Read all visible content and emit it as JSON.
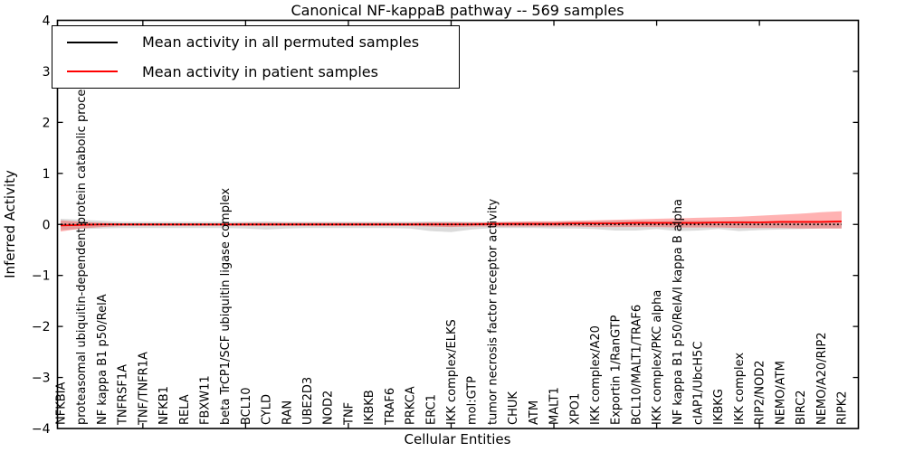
{
  "figure": {
    "title": "Canonical NF-kappaB pathway -- 569 samples",
    "xlabel": "Cellular Entities",
    "ylabel": "Inferred Activity",
    "background_color": "#ffffff",
    "axis_color": "#000000"
  },
  "legend": {
    "position": "upper left",
    "items": [
      {
        "label": "Mean activity in all permuted samples",
        "color": "#000000",
        "style": "solid"
      },
      {
        "label": "Mean activity in patient samples",
        "color": "#ff0000",
        "style": "solid"
      }
    ]
  },
  "chart_data": {
    "type": "line",
    "title": "Canonical NF-kappaB pathway -- 569 samples",
    "xlabel": "Cellular Entities",
    "ylabel": "Inferred Activity",
    "ylim": [
      -4,
      4
    ],
    "yticks": [
      4,
      3,
      2,
      1,
      0,
      -1,
      -2,
      -3,
      -4
    ],
    "xtick_interval": 5,
    "grid": false,
    "legend_position": "upper left",
    "categories": [
      "NFKBIA",
      "proteasomal ubiquitin-dependent protein catabolic process",
      "NF kappa B1 p50/RelA",
      "TNFRSF1A",
      "TNF/TNFR1A",
      "NFKB1",
      "RELA",
      "FBXW11",
      "beta TrCP1/SCF ubiquitin ligase complex",
      "BCL10",
      "CYLD",
      "RAN",
      "UBE2D3",
      "NOD2",
      "TNF",
      "IKBKB",
      "TRAF6",
      "PRKCA",
      "ERC1",
      "IKK complex/ELKS",
      "mol:GTP",
      "tumor necrosis factor receptor activity",
      "CHUK",
      "ATM",
      "MALT1",
      "XPO1",
      "IKK complex/A20",
      "Exportin 1/RanGTP",
      "BCL10/MALT1/TRAF6",
      "IKK complex/PKC alpha",
      "NF kappa B1 p50/RelA/I kappa B alpha",
      "cIAP1/UbcH5C",
      "IKBKG",
      "IKK complex",
      "RIP2/NOD2",
      "NEMO/ATM",
      "BIRC2",
      "NEMO/A20/RIP2",
      "RIPK2"
    ],
    "series": [
      {
        "name": "Mean activity in all permuted samples",
        "color": "#000000",
        "line_style": "dotted",
        "band_color": "rgba(90,90,90,0.22)",
        "values": [
          0,
          0,
          0,
          0,
          0,
          0,
          0,
          0,
          0,
          0,
          0,
          0,
          0,
          0,
          0,
          0,
          0,
          0,
          0,
          0,
          0,
          0,
          0,
          0,
          0,
          0,
          0,
          0,
          0,
          0,
          0,
          0,
          0,
          0,
          0,
          0,
          0,
          0,
          0
        ],
        "band_high": [
          0.11,
          0.09,
          0.07,
          0.05,
          0.05,
          0.05,
          0.05,
          0.05,
          0.05,
          0.05,
          0.06,
          0.05,
          0.05,
          0.05,
          0.05,
          0.05,
          0.05,
          0.05,
          0.06,
          0.06,
          0.05,
          0.05,
          0.05,
          0.05,
          0.05,
          0.06,
          0.06,
          0.07,
          0.07,
          0.06,
          0.07,
          0.07,
          0.06,
          0.07,
          0.06,
          0.06,
          0.06,
          0.06,
          0.06
        ],
        "band_low": [
          -0.11,
          -0.09,
          -0.08,
          -0.07,
          -0.07,
          -0.07,
          -0.07,
          -0.07,
          -0.07,
          -0.08,
          -0.1,
          -0.08,
          -0.07,
          -0.07,
          -0.07,
          -0.07,
          -0.07,
          -0.08,
          -0.13,
          -0.15,
          -0.1,
          -0.07,
          -0.07,
          -0.07,
          -0.08,
          -0.08,
          -0.09,
          -0.12,
          -0.12,
          -0.09,
          -0.13,
          -0.12,
          -0.09,
          -0.13,
          -0.11,
          -0.1,
          -0.09,
          -0.08,
          -0.08
        ]
      },
      {
        "name": "Mean activity in patient samples",
        "color": "#ff0000",
        "line_style": "solid",
        "band_color": "rgba(255,0,0,0.30)",
        "values": [
          -0.02,
          -0.01,
          0,
          0,
          0,
          0,
          0,
          0,
          0,
          0,
          0,
          0,
          0,
          0,
          0,
          0,
          0,
          0,
          0,
          0,
          0,
          0.01,
          0.01,
          0.01,
          0.01,
          0.02,
          0.02,
          0.02,
          0.03,
          0.03,
          0.03,
          0.03,
          0.04,
          0.04,
          0.04,
          0.05,
          0.05,
          0.05,
          0.06
        ],
        "band_high": [
          0.08,
          0.05,
          0.03,
          0.02,
          0.02,
          0.02,
          0.02,
          0.02,
          0.02,
          0.03,
          0.03,
          0.03,
          0.03,
          0.03,
          0.03,
          0.03,
          0.03,
          0.03,
          0.04,
          0.04,
          0.04,
          0.04,
          0.05,
          0.06,
          0.06,
          0.07,
          0.08,
          0.09,
          0.1,
          0.11,
          0.12,
          0.13,
          0.14,
          0.15,
          0.17,
          0.19,
          0.21,
          0.24,
          0.26
        ],
        "band_low": [
          -0.14,
          -0.08,
          -0.05,
          -0.03,
          -0.03,
          -0.03,
          -0.03,
          -0.03,
          -0.03,
          -0.03,
          -0.03,
          -0.03,
          -0.03,
          -0.03,
          -0.03,
          -0.03,
          -0.03,
          -0.03,
          -0.04,
          -0.05,
          -0.04,
          -0.04,
          -0.04,
          -0.04,
          -0.04,
          -0.04,
          -0.05,
          -0.05,
          -0.05,
          -0.05,
          -0.06,
          -0.06,
          -0.06,
          -0.07,
          -0.07,
          -0.07,
          -0.08,
          -0.08,
          -0.08
        ]
      }
    ]
  }
}
